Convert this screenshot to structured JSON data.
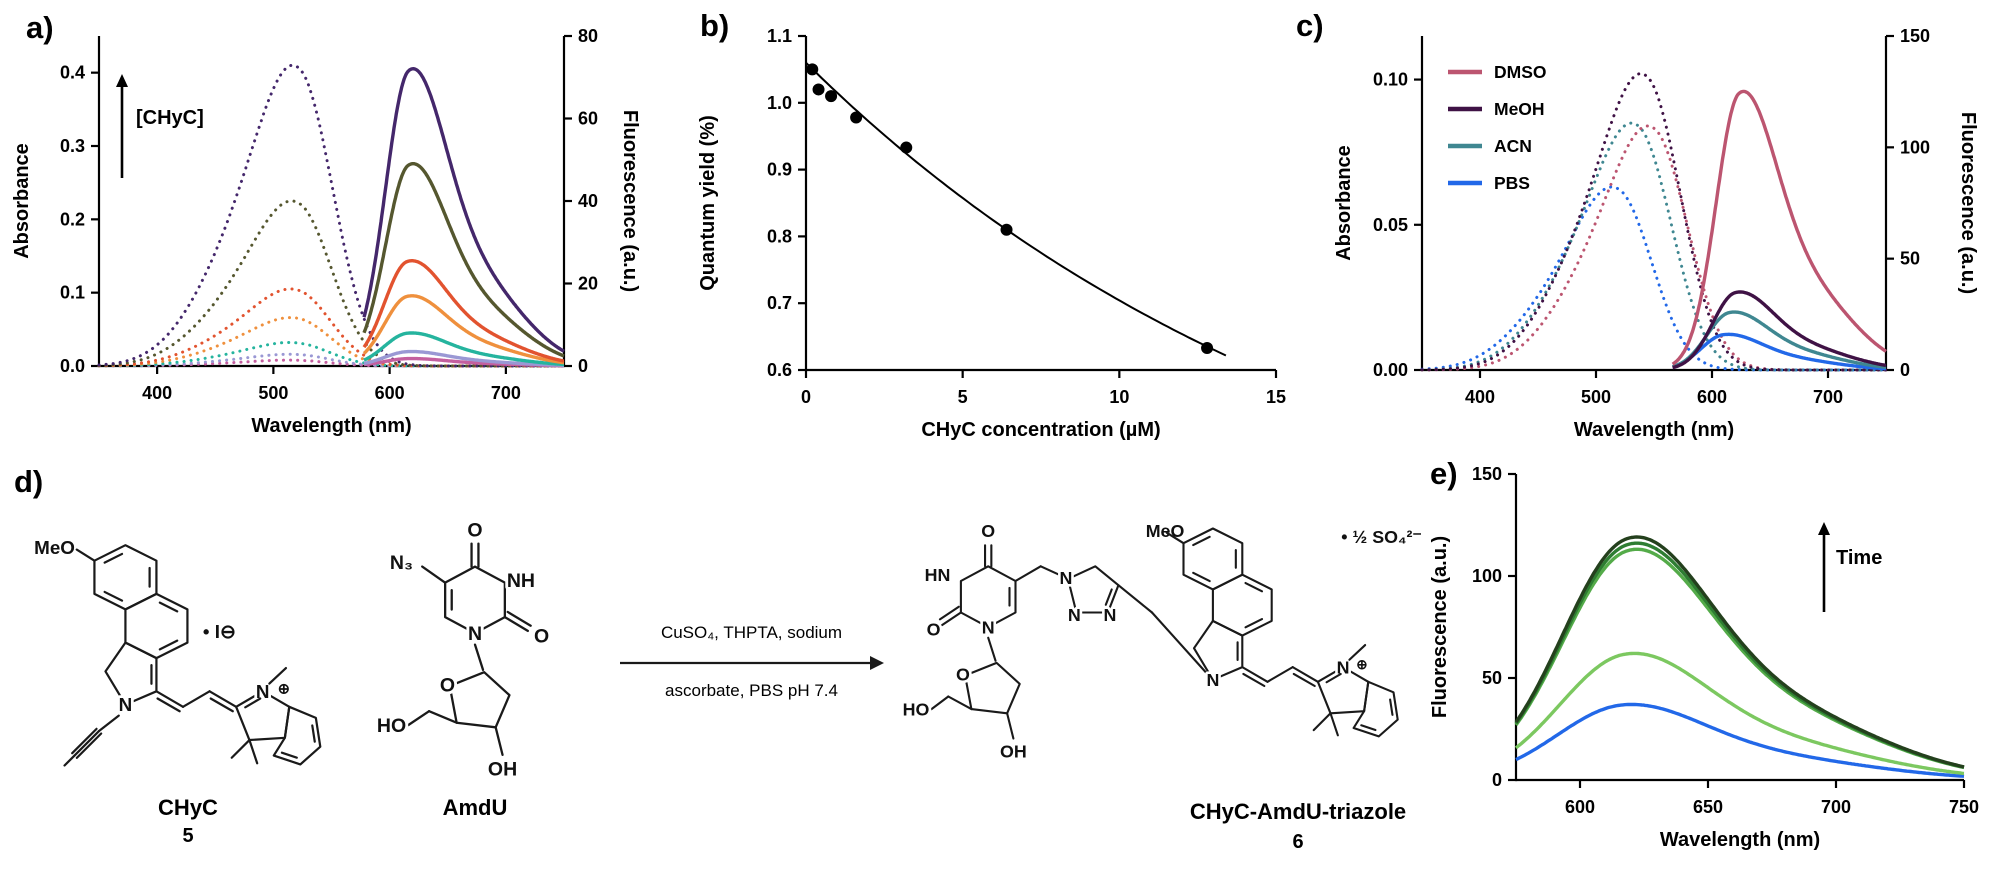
{
  "figure": {
    "panel_labels": {
      "a": "a)",
      "b": "b)",
      "c": "c)",
      "d": "d)",
      "e": "e)"
    }
  },
  "chart_data": [
    {
      "id": "a",
      "type": "line",
      "xlabel": "Wavelength (nm)",
      "ylabel": "Absorbance",
      "ylabel_right": "Fluorescence (a.u.)",
      "xlim": [
        350,
        750
      ],
      "xticks": [
        400,
        500,
        600,
        700
      ],
      "ylim": [
        0,
        0.45
      ],
      "yticks": [
        0,
        0.1,
        0.2,
        0.3,
        0.4
      ],
      "ydecimals": 1,
      "ylim_right": [
        0,
        80
      ],
      "yticks_right": [
        0,
        20,
        40,
        60,
        80
      ],
      "ydecimals_right": 0,
      "annotation": "[CHyC]",
      "series": [
        {
          "kind": "abs",
          "style": "dotted",
          "axis": "left",
          "color": "#c45f9f",
          "peak": 520,
          "amp": 0.008
        },
        {
          "kind": "abs",
          "style": "dotted",
          "axis": "left",
          "color": "#9a98d4",
          "peak": 521,
          "amp": 0.016
        },
        {
          "kind": "abs",
          "style": "dotted",
          "axis": "left",
          "color": "#25b49e",
          "peak": 521,
          "amp": 0.032
        },
        {
          "kind": "abs",
          "style": "dotted",
          "axis": "left",
          "color": "#ef903d",
          "peak": 522,
          "amp": 0.066
        },
        {
          "kind": "abs",
          "style": "dotted",
          "axis": "left",
          "color": "#e2532f",
          "peak": 522,
          "amp": 0.105
        },
        {
          "kind": "abs",
          "style": "dotted",
          "axis": "left",
          "color": "#55572f",
          "peak": 523,
          "amp": 0.225
        },
        {
          "kind": "abs",
          "style": "dotted",
          "axis": "left",
          "color": "#44276b",
          "peak": 524,
          "amp": 0.41
        },
        {
          "kind": "em",
          "style": "solid",
          "axis": "right",
          "color": "#c45f9f",
          "peak": 615,
          "amp": 1.8,
          "xstart": 578
        },
        {
          "kind": "em",
          "style": "solid",
          "axis": "right",
          "color": "#9a98d4",
          "peak": 615,
          "amp": 3.5,
          "xstart": 578
        },
        {
          "kind": "em",
          "style": "solid",
          "axis": "right",
          "color": "#25b49e",
          "peak": 615,
          "amp": 8,
          "xstart": 578
        },
        {
          "kind": "em",
          "style": "solid",
          "axis": "right",
          "color": "#ef903d",
          "peak": 615,
          "amp": 17,
          "xstart": 578
        },
        {
          "kind": "em",
          "style": "solid",
          "axis": "right",
          "color": "#e2532f",
          "peak": 615,
          "amp": 25.5,
          "xstart": 578
        },
        {
          "kind": "em",
          "style": "solid",
          "axis": "right",
          "color": "#55572f",
          "peak": 616,
          "amp": 49,
          "xstart": 578
        },
        {
          "kind": "em",
          "style": "solid",
          "axis": "right",
          "color": "#44276b",
          "peak": 616,
          "amp": 72,
          "xstart": 578
        }
      ]
    },
    {
      "id": "b",
      "type": "scatter",
      "xlabel": "CHyC concentration (µM)",
      "ylabel": "Quantum yield (%)",
      "xlim": [
        0,
        15
      ],
      "xticks": [
        0,
        5,
        10,
        15
      ],
      "ylim": [
        0.6,
        1.1
      ],
      "yticks": [
        0.6,
        0.7,
        0.8,
        0.9,
        1.0,
        1.1
      ],
      "ydecimals": 1,
      "points": [
        [
          0.2,
          1.05
        ],
        [
          0.4,
          1.02
        ],
        [
          0.8,
          1.01
        ],
        [
          1.6,
          0.978
        ],
        [
          3.2,
          0.933
        ],
        [
          6.4,
          0.81
        ],
        [
          12.8,
          0.633
        ]
      ],
      "fit": {
        "A": 0.8333,
        "k": 0.0557,
        "B": 0.2267,
        "range": [
          0,
          13.4
        ]
      }
    },
    {
      "id": "c",
      "type": "line",
      "xlabel": "Wavelength (nm)",
      "ylabel": "Absorbance",
      "ylabel_right": "Fluorescence (a.u.)",
      "xlim": [
        350,
        750
      ],
      "xticks": [
        400,
        500,
        600,
        700
      ],
      "ylim": [
        0,
        0.115
      ],
      "yticks": [
        0,
        0.05,
        0.1
      ],
      "ydecimals": 2,
      "ylim_right": [
        0,
        150
      ],
      "yticks_right": [
        0,
        50,
        100,
        150
      ],
      "ydecimals_right": 0,
      "legend": [
        "DMSO",
        "MeOH",
        "ACN",
        "PBS"
      ],
      "legend_colors": {
        "DMSO": "#bc5570",
        "MeOH": "#3f1245",
        "ACN": "#3f8791",
        "PBS": "#2268e8"
      },
      "series": [
        {
          "name": "PBS",
          "kind": "abs",
          "style": "dotted",
          "axis": "left",
          "color": "#2268e8",
          "peak": 521,
          "amp": 0.063
        },
        {
          "name": "ACN",
          "kind": "abs",
          "style": "dotted",
          "axis": "left",
          "color": "#3f8791",
          "peak": 538,
          "amp": 0.085
        },
        {
          "name": "DMSO",
          "kind": "abs",
          "style": "dotted",
          "axis": "left",
          "color": "#bc5570",
          "peak": 552,
          "amp": 0.084
        },
        {
          "name": "MeOH",
          "kind": "abs",
          "style": "dotted",
          "axis": "left",
          "color": "#3f1245",
          "peak": 546,
          "amp": 0.102
        },
        {
          "name": "PBS",
          "kind": "em",
          "style": "solid",
          "axis": "right",
          "color": "#2268e8",
          "peak": 610,
          "amp": 16,
          "xstart": 566
        },
        {
          "name": "ACN",
          "kind": "em",
          "style": "solid",
          "axis": "right",
          "color": "#3f8791",
          "peak": 615,
          "amp": 26,
          "xstart": 566
        },
        {
          "name": "MeOH",
          "kind": "em",
          "style": "solid",
          "axis": "right",
          "color": "#3f1245",
          "peak": 620,
          "amp": 35,
          "xstart": 566
        },
        {
          "name": "DMSO",
          "kind": "em",
          "style": "solid",
          "axis": "right",
          "color": "#bc5570",
          "peak": 623,
          "amp": 125,
          "xstart": 566
        }
      ]
    },
    {
      "id": "e",
      "type": "line",
      "xlabel": "Wavelength (nm)",
      "ylabel": "Fluorescence (a.u.)",
      "xlim": [
        575,
        750
      ],
      "xticks": [
        600,
        650,
        700,
        750
      ],
      "ylim": [
        0,
        150
      ],
      "yticks": [
        0,
        50,
        100,
        150
      ],
      "ydecimals": 0,
      "annotation": "Time",
      "series": [
        {
          "kind": "em",
          "style": "solid",
          "axis": "left",
          "color": "#2268e8",
          "peak": 616,
          "amp": 37,
          "sl": 26
        },
        {
          "kind": "em",
          "style": "solid",
          "axis": "left",
          "color": "#7cc860",
          "peak": 617,
          "amp": 62,
          "sl": 26
        },
        {
          "kind": "em",
          "style": "solid",
          "axis": "left",
          "color": "#54ab49",
          "peak": 618,
          "amp": 113,
          "sl": 26
        },
        {
          "kind": "em",
          "style": "solid",
          "axis": "left",
          "color": "#2e7d32",
          "peak": 618,
          "amp": 116,
          "sl": 26
        },
        {
          "kind": "em",
          "style": "solid",
          "axis": "left",
          "color": "#24401d",
          "peak": 618,
          "amp": 119,
          "sl": 26
        }
      ]
    }
  ],
  "panels": {
    "d": {
      "names": {
        "chyc": "CHyC",
        "chyc_num": "5",
        "amdu": "AmdU",
        "product": "CHyC-AmdU-triazole",
        "product_num": "6"
      },
      "reagents_line1": "CuSO₄, THPTA, sodium",
      "reagents_line2": "ascorbate, PBS pH 7.4",
      "labels": {
        "meo": "MeO",
        "n": "N",
        "nh": "NH",
        "hn": "HN",
        "o": "O",
        "ho": "HO",
        "oh": "OH",
        "n3": "N₃",
        "iodide": "• I⊖",
        "sulfate": "• ½ SO₄²⁻",
        "plus": "⊕"
      }
    }
  }
}
